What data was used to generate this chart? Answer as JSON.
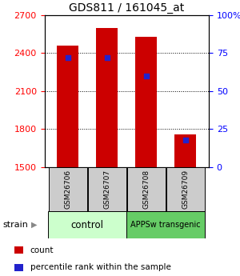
{
  "title": "GDS811 / 161045_at",
  "samples": [
    "GSM26706",
    "GSM26707",
    "GSM26708",
    "GSM26709"
  ],
  "count_values": [
    2460,
    2600,
    2530,
    1760
  ],
  "percentile_values": [
    72,
    72,
    60,
    18
  ],
  "ylim_left": [
    1500,
    2700
  ],
  "ylim_right": [
    0,
    100
  ],
  "yticks_left": [
    1500,
    1800,
    2100,
    2400,
    2700
  ],
  "yticks_right": [
    0,
    25,
    50,
    75,
    100
  ],
  "ytick_labels_right": [
    "0",
    "25",
    "50",
    "75",
    "100%"
  ],
  "bar_color": "#cc0000",
  "dot_color": "#2222cc",
  "control_label": "control",
  "transgenic_label": "APPSw transgenic",
  "strain_label": "strain",
  "legend_count_label": "count",
  "legend_pct_label": "percentile rank within the sample",
  "control_bg": "#ccffcc",
  "transgenic_bg": "#66cc66",
  "sample_box_bg": "#cccccc",
  "bar_width": 0.55
}
